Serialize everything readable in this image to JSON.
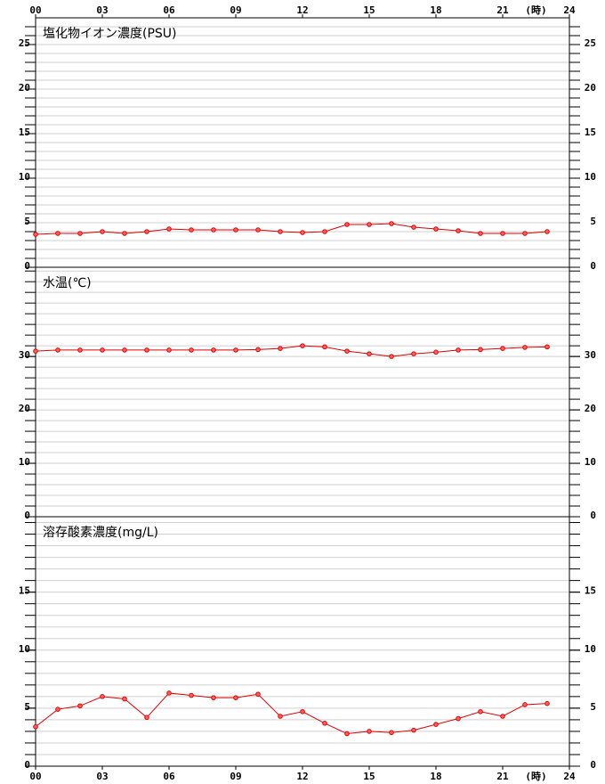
{
  "x_axis": {
    "xlim": [
      0,
      24
    ],
    "xticks": [
      {
        "value": 0,
        "label": "00"
      },
      {
        "value": 3,
        "label": "03"
      },
      {
        "value": 6,
        "label": "06"
      },
      {
        "value": 9,
        "label": "09"
      },
      {
        "value": 12,
        "label": "12"
      },
      {
        "value": 15,
        "label": "15"
      },
      {
        "value": 18,
        "label": "18"
      },
      {
        "value": 21,
        "label": "21"
      },
      {
        "value": 24,
        "label": "24"
      }
    ],
    "xlabel": "(時)"
  },
  "chart_data": [
    {
      "type": "line",
      "title": "塩化物イオン濃度(PSU)",
      "color": "#e00000",
      "x": [
        0,
        1,
        2,
        3,
        4,
        5,
        6,
        7,
        8,
        9,
        10,
        11,
        12,
        13,
        14,
        15,
        16,
        17,
        18,
        19,
        20,
        21,
        22,
        23
      ],
      "values": [
        3.7,
        3.8,
        3.8,
        4.0,
        3.8,
        4.0,
        4.3,
        4.2,
        4.2,
        4.2,
        4.2,
        4.0,
        3.9,
        4.0,
        4.8,
        4.8,
        4.9,
        4.5,
        4.3,
        4.1,
        3.8,
        3.8,
        3.8,
        4.0
      ],
      "ylim": [
        0,
        28
      ],
      "yticks": [
        0,
        5,
        10,
        15,
        20,
        25
      ],
      "minor_step": 1,
      "grid": true
    },
    {
      "type": "line",
      "title": "水温(℃)",
      "color": "#e00000",
      "x": [
        0,
        1,
        2,
        3,
        4,
        5,
        6,
        7,
        8,
        9,
        10,
        11,
        12,
        13,
        14,
        15,
        16,
        17,
        18,
        19,
        20,
        21,
        22,
        23
      ],
      "values": [
        31.0,
        31.2,
        31.2,
        31.2,
        31.2,
        31.2,
        31.2,
        31.2,
        31.2,
        31.2,
        31.3,
        31.5,
        32.0,
        31.8,
        31.0,
        30.5,
        30.0,
        30.5,
        30.8,
        31.2,
        31.3,
        31.5,
        31.7,
        31.8
      ],
      "ylim": [
        0,
        46.7
      ],
      "yticks": [
        0,
        10,
        20,
        30
      ],
      "minor_step": 2,
      "grid": true
    },
    {
      "type": "line",
      "title": "溶存酸素濃度(mg/L)",
      "color": "#e00000",
      "x": [
        0,
        1,
        2,
        3,
        4,
        5,
        6,
        7,
        8,
        9,
        10,
        11,
        12,
        13,
        14,
        15,
        16,
        17,
        18,
        19,
        20,
        21,
        22,
        23
      ],
      "values": [
        3.4,
        4.9,
        5.2,
        6.0,
        5.8,
        4.2,
        6.3,
        6.1,
        5.9,
        5.9,
        6.2,
        4.3,
        4.7,
        3.7,
        2.8,
        3.0,
        2.9,
        3.1,
        3.6,
        4.1,
        4.7,
        4.3,
        5.3,
        5.4
      ],
      "ylim": [
        0,
        21.5
      ],
      "yticks": [
        0,
        5,
        10,
        15
      ],
      "minor_step": 1,
      "grid": true
    }
  ]
}
